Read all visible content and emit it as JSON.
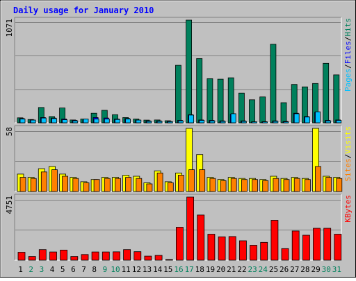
{
  "colors": {
    "background": "#C0C0C0",
    "frame_text": "#0000FF",
    "hits": "#00805C",
    "files": "#0000FF",
    "pages": "#00C0FF",
    "visits": "#FFFF00",
    "sites": "#FF8000",
    "kbytes": "#FF0000",
    "weekend": "#00805C",
    "weekday": "#000000"
  },
  "chart_data": {
    "type": "bar",
    "title": "Daily usage for January 2010",
    "categories": [
      "1",
      "2",
      "3",
      "4",
      "5",
      "6",
      "7",
      "8",
      "9",
      "10",
      "11",
      "12",
      "13",
      "14",
      "15",
      "16",
      "17",
      "18",
      "19",
      "20",
      "21",
      "22",
      "23",
      "24",
      "25",
      "26",
      "27",
      "28",
      "29",
      "30",
      "31"
    ],
    "weekend_days": [
      "2",
      "3",
      "9",
      "10",
      "16",
      "17",
      "23",
      "24",
      "30",
      "31"
    ],
    "panels": [
      {
        "name": "hits-files-pages",
        "ymax_label": "1071",
        "ymax": 1071,
        "legend": [
          {
            "text": "Pages",
            "color": "#00C0FF"
          },
          {
            "text": "Files",
            "color": "#0000FF"
          },
          {
            "text": "Hits",
            "color": "#00805C"
          }
        ],
        "series": [
          {
            "name": "Hits",
            "values": [
              52,
              35,
              160,
              65,
              155,
              30,
              40,
              100,
              130,
              85,
              55,
              40,
              28,
              30,
              22,
              600,
              1071,
              670,
              460,
              455,
              470,
              310,
              240,
              270,
              820,
              210,
              400,
              375,
              410,
              620,
              500
            ]
          },
          {
            "name": "Files",
            "values": [
              45,
              30,
              55,
              50,
              40,
              25,
              30,
              55,
              50,
              40,
              45,
              30,
              20,
              20,
              15,
              25,
              85,
              30,
              25,
              20,
              90,
              20,
              10,
              12,
              20,
              15,
              100,
              65,
              110,
              25,
              30
            ]
          },
          {
            "name": "Pages",
            "values": [
              40,
              28,
              50,
              45,
              32,
              20,
              40,
              40,
              40,
              35,
              40,
              28,
              15,
              15,
              12,
              20,
              80,
              25,
              20,
              15,
              95,
              15,
              10,
              10,
              15,
              10,
              95,
              60,
              115,
              20,
              25
            ]
          }
        ]
      },
      {
        "name": "visits-sites",
        "ymax_label": "58",
        "ymax": 58,
        "legend": [
          {
            "text": "Sites",
            "color": "#FF8000"
          },
          {
            "text": "Visits",
            "color": "#FFFF00"
          }
        ],
        "series": [
          {
            "name": "Visits",
            "values": [
              16,
              13,
              21,
              23,
              16,
              13,
              9,
              11,
              13,
              13,
              15,
              14,
              8,
              19,
              9,
              17,
              58,
              34,
              13,
              11,
              13,
              12,
              12,
              11,
              14,
              12,
              13,
              12,
              58,
              14,
              13
            ]
          },
          {
            "name": "Sites",
            "values": [
              13,
              12,
              18,
              20,
              14,
              12,
              8,
              11,
              12,
              12,
              13,
              12,
              7,
              17,
              8,
              15,
              20,
              20,
              12,
              10,
              12,
              11,
              11,
              10,
              12,
              11,
              12,
              11,
              23,
              13,
              12
            ]
          }
        ]
      },
      {
        "name": "kbytes",
        "ymax_label": "4751",
        "ymax": 4751,
        "legend": [
          {
            "text": "KBytes",
            "color": "#FF0000"
          }
        ],
        "series": [
          {
            "name": "KBytes",
            "values": [
              600,
              280,
              800,
              620,
              760,
              280,
              430,
              620,
              620,
              630,
              800,
              640,
              310,
              360,
              40,
              2480,
              4751,
              3400,
              1960,
              1760,
              1780,
              1460,
              1120,
              1340,
              3000,
              870,
              2200,
              1880,
              2400,
              2400,
              1960
            ]
          }
        ]
      }
    ]
  }
}
